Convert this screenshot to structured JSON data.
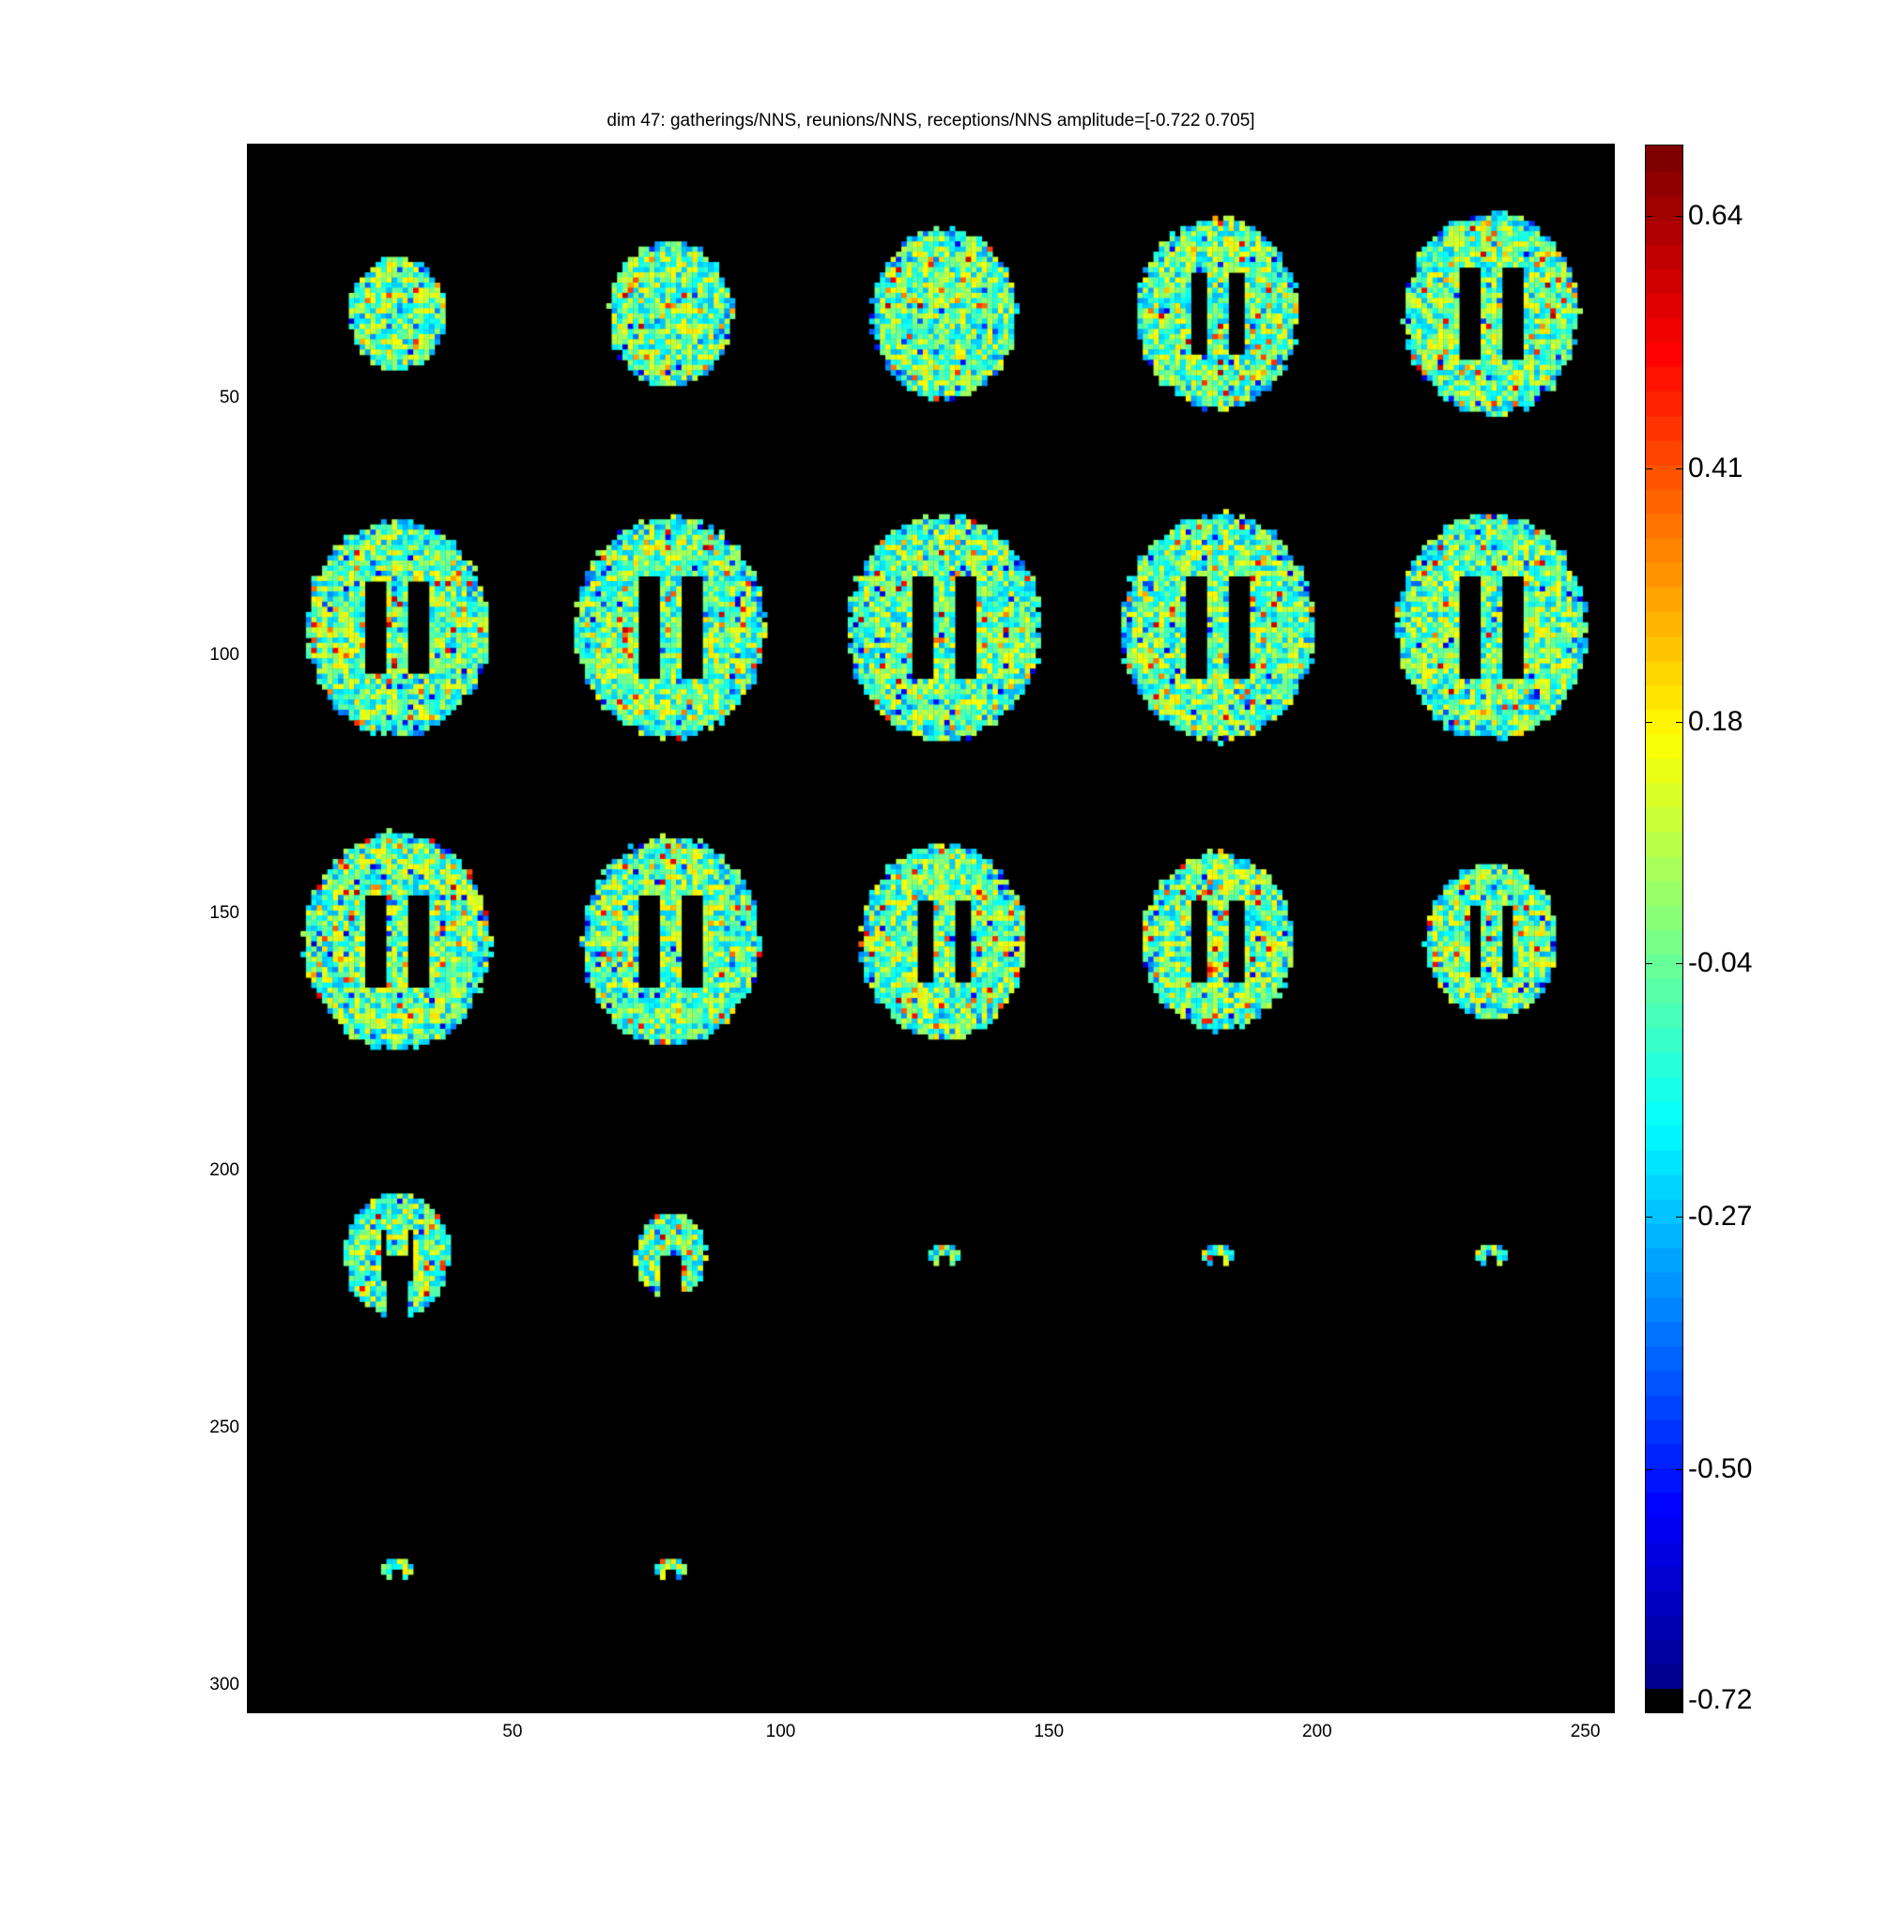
{
  "chart_data": {
    "type": "heatmap",
    "title": "dim 47: gatherings/NNS, reunions/NNS, receptions/NNS amplitude=[-0.722 0.705]",
    "description_of_content": "mosaic of 22 axial brain slices colored with jet colormap",
    "xlim": [
      0.5,
      255.5
    ],
    "ylim": [
      0.5,
      305.5
    ],
    "y_reversed": true,
    "xticks": [
      50,
      100,
      150,
      200,
      250
    ],
    "yticks": [
      50,
      100,
      150,
      200,
      250,
      300
    ],
    "grid": false,
    "background": "#000000",
    "slice_count": 22,
    "mosaic_columns": 5,
    "colormap": "jet",
    "color_range": [
      -0.722,
      0.705
    ],
    "colorbar": {
      "ticks": [
        0.64,
        0.41,
        0.18,
        -0.04,
        -0.27,
        -0.5,
        -0.72
      ],
      "tick_labels": [
        "0.64",
        "0.41",
        "0.18",
        "-0.04",
        "-0.27",
        "-0.50",
        "-0.72"
      ],
      "bottom_color": "#000000"
    }
  }
}
